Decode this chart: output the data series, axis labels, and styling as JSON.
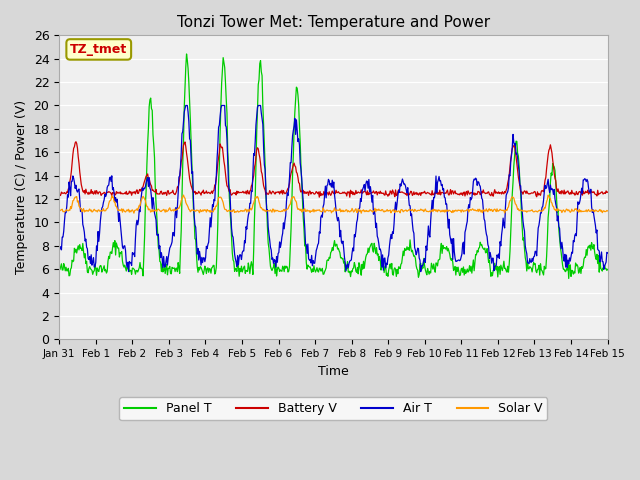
{
  "title": "Tonzi Tower Met: Temperature and Power",
  "xlabel": "Time",
  "ylabel": "Temperature (C) / Power (V)",
  "ylim": [
    0,
    26
  ],
  "yticks": [
    0,
    2,
    4,
    6,
    8,
    10,
    12,
    14,
    16,
    18,
    20,
    22,
    24,
    26
  ],
  "x_labels": [
    "Jan 31",
    "Feb 1",
    "Feb 2",
    "Feb 3",
    "Feb 4",
    "Feb 5",
    "Feb 6",
    "Feb 7",
    "Feb 8",
    "Feb 9",
    "Feb 10",
    "Feb 11",
    "Feb 12",
    "Feb 13",
    "Feb 14",
    "Feb 15"
  ],
  "x_tick_pos": [
    0,
    1,
    2,
    3,
    4,
    5,
    6,
    7,
    8,
    9,
    10,
    11,
    12,
    13,
    14,
    15
  ],
  "bg_color": "#d8d8d8",
  "plot_bg": "#f0f0f0",
  "grid_color": "#ffffff",
  "colors": {
    "Panel T": "#00cc00",
    "Battery V": "#cc0000",
    "Air T": "#0000cc",
    "Solar V": "#ff9900"
  },
  "annotation_text": "TZ_tmet",
  "annotation_color": "#cc0000",
  "annotation_bg": "#ffffcc",
  "annotation_border": "#999900",
  "n_days": 15
}
